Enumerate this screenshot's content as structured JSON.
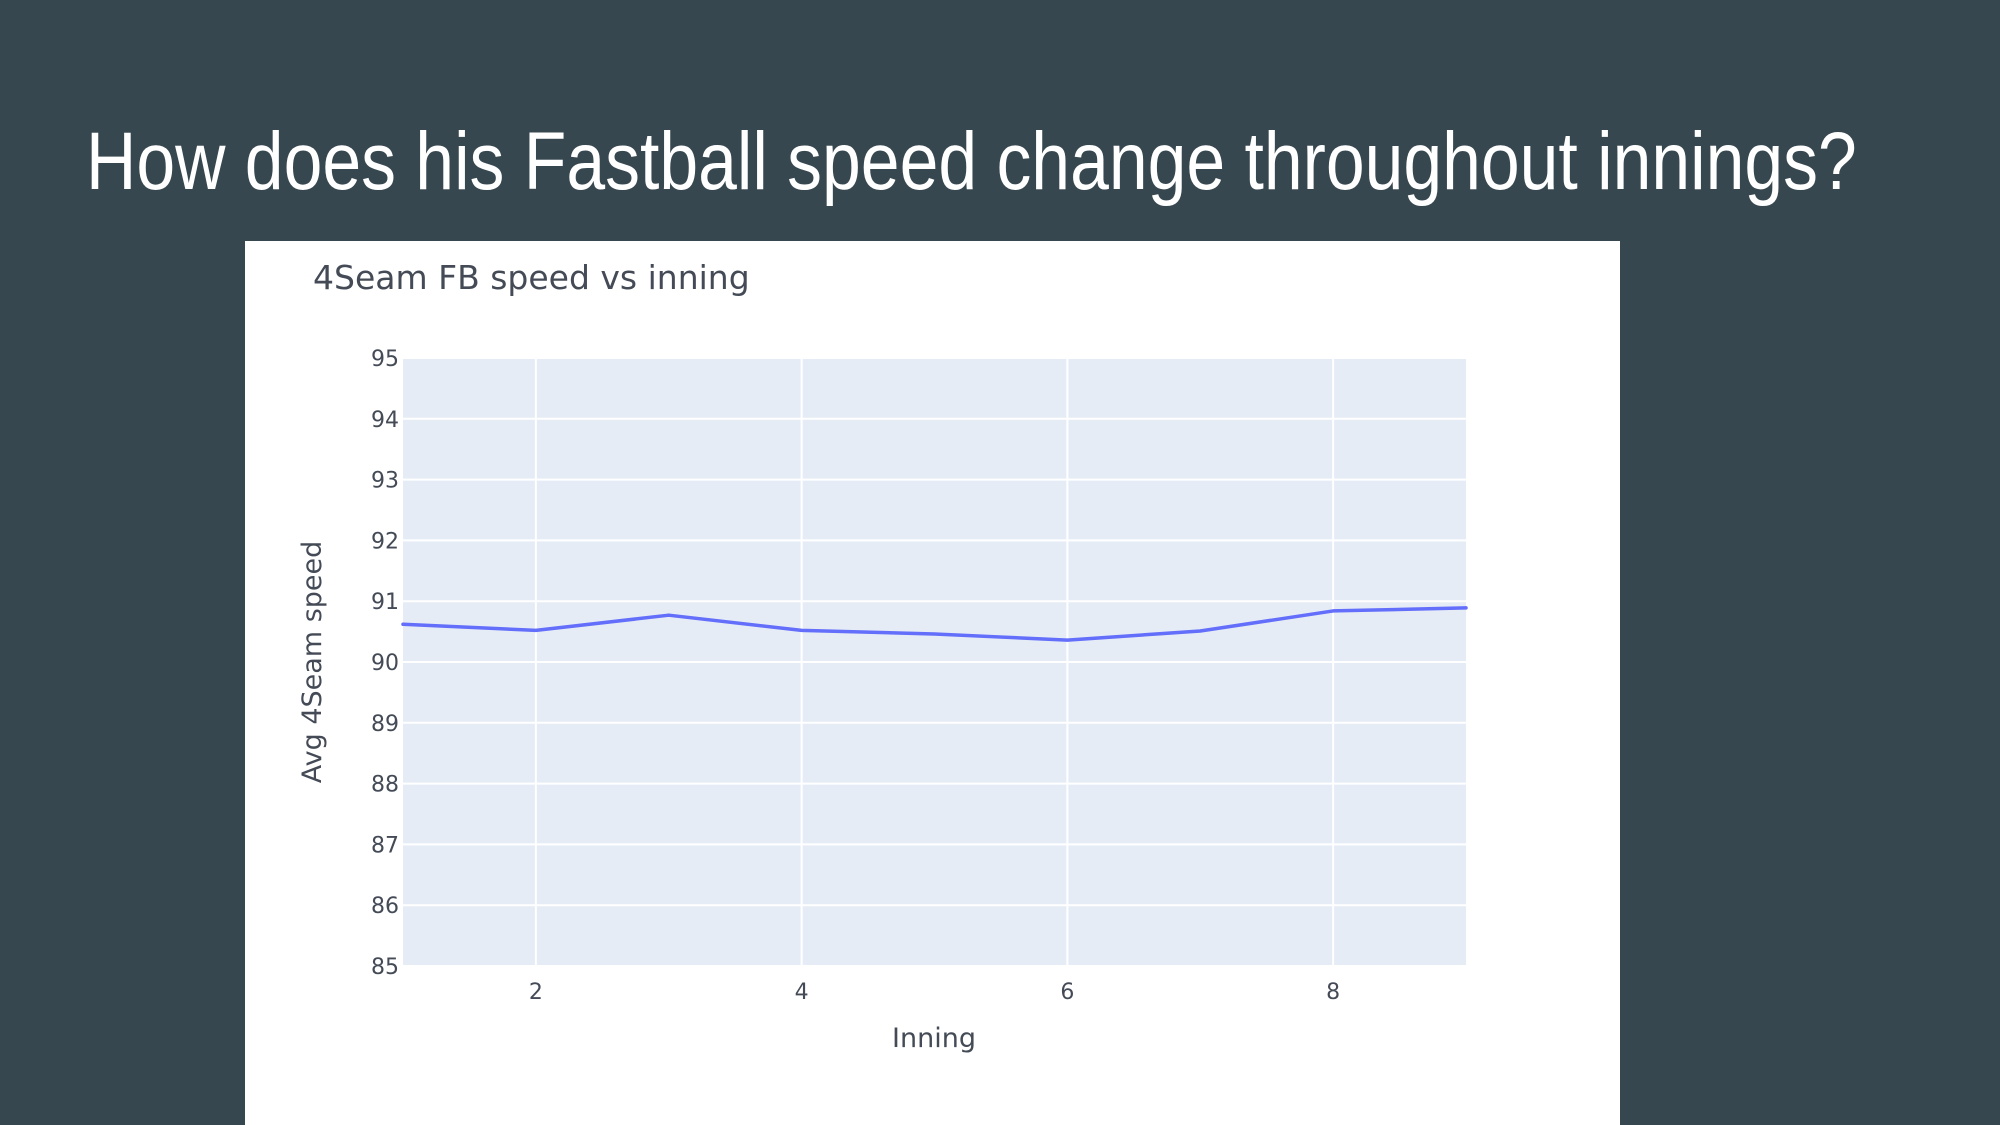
{
  "slide": {
    "title": "How does his Fastball speed change throughout innings?",
    "background_color": "#37474f"
  },
  "chart_data": {
    "type": "line",
    "title": "4Seam FB speed vs inning",
    "xlabel": "Inning",
    "ylabel": "Avg 4Seam speed",
    "x": [
      1,
      2,
      3,
      4,
      5,
      6,
      7,
      8,
      9
    ],
    "series": [
      {
        "values": [
          90.62,
          90.52,
          90.77,
          90.52,
          90.46,
          90.36,
          90.51,
          90.84,
          90.89
        ],
        "color": "#636efa"
      }
    ],
    "xlim": [
      1,
      9
    ],
    "ylim": [
      85,
      95
    ],
    "xticks": [
      2,
      4,
      6,
      8
    ],
    "yticks": [
      85,
      86,
      87,
      88,
      89,
      90,
      91,
      92,
      93,
      94,
      95
    ],
    "grid": true,
    "plot_background": "#e5ecf6",
    "legend": "none"
  }
}
